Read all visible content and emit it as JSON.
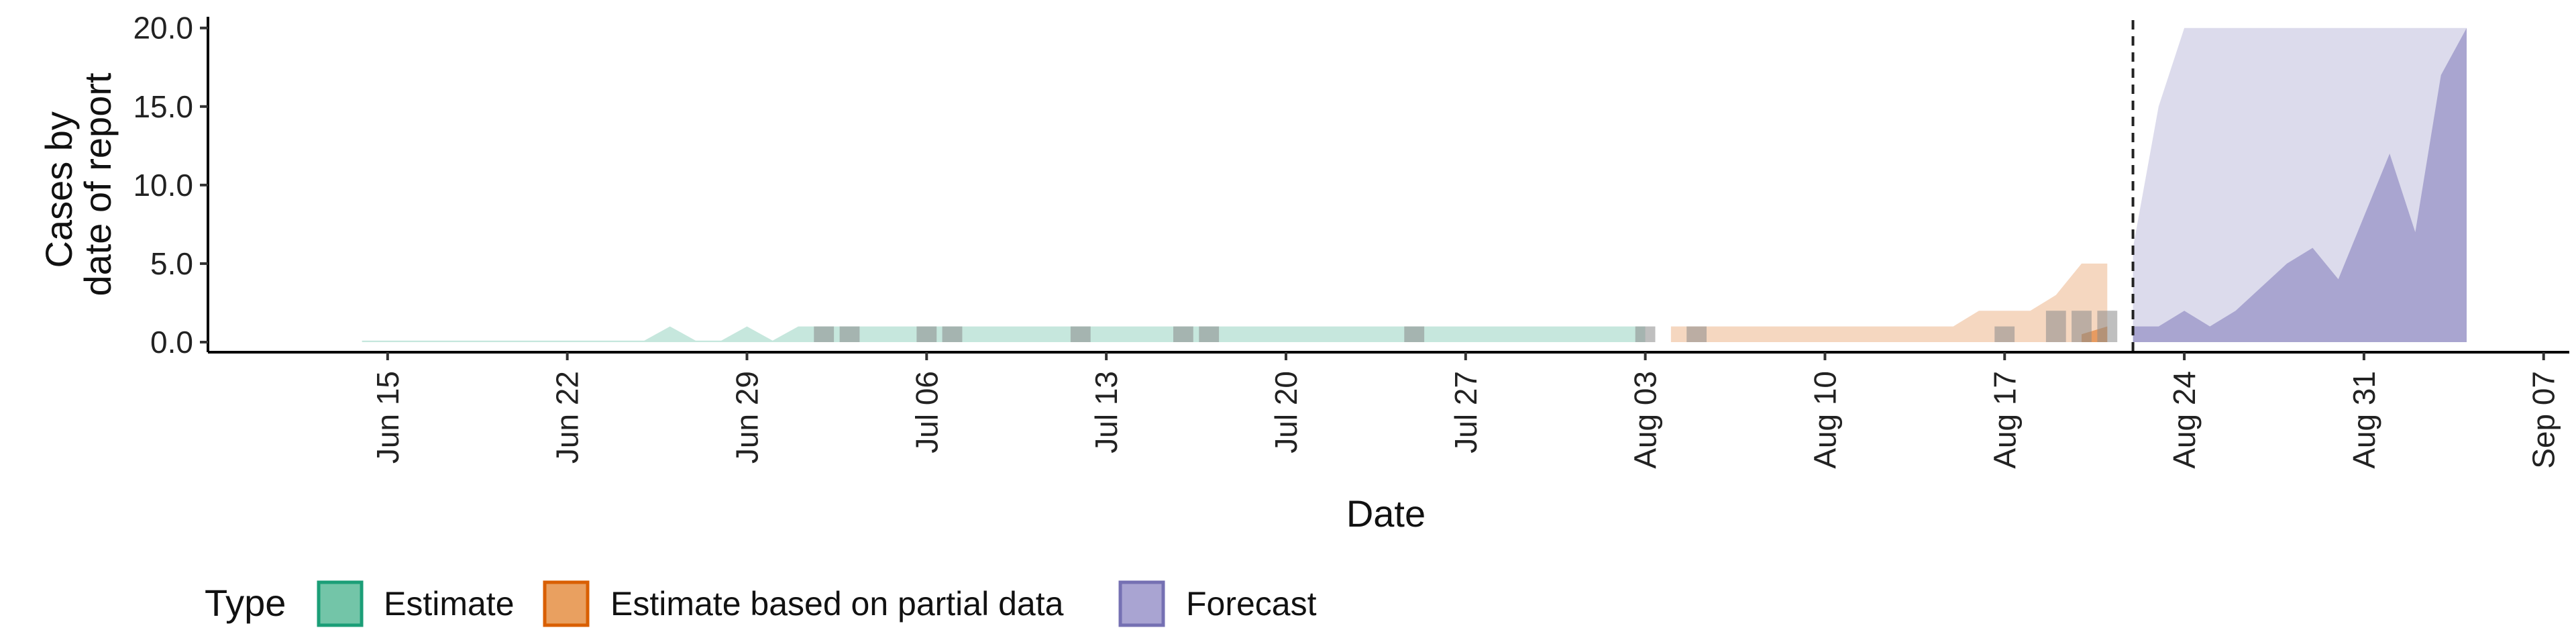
{
  "chart_data": {
    "type": "area",
    "title": "",
    "xlabel": "Date",
    "ylabel": [
      "Cases by",
      "date of report"
    ],
    "x_start": "2020-06-08",
    "xlim": [
      "2020-06-08",
      "2020-09-08"
    ],
    "ylim": [
      0,
      20.5
    ],
    "x_ticks": [
      {
        "date": "2020-06-15",
        "label": "Jun 15"
      },
      {
        "date": "2020-06-22",
        "label": "Jun 22"
      },
      {
        "date": "2020-06-29",
        "label": "Jun 29"
      },
      {
        "date": "2020-07-06",
        "label": "Jul 06"
      },
      {
        "date": "2020-07-13",
        "label": "Jul 13"
      },
      {
        "date": "2020-07-20",
        "label": "Jul 20"
      },
      {
        "date": "2020-07-27",
        "label": "Jul 27"
      },
      {
        "date": "2020-08-03",
        "label": "Aug 03"
      },
      {
        "date": "2020-08-10",
        "label": "Aug 10"
      },
      {
        "date": "2020-08-17",
        "label": "Aug 17"
      },
      {
        "date": "2020-08-24",
        "label": "Aug 24"
      },
      {
        "date": "2020-08-31",
        "label": "Aug 31"
      },
      {
        "date": "2020-09-07",
        "label": "Sep 07"
      }
    ],
    "y_ticks": [
      {
        "value": 0,
        "label": "0.0"
      },
      {
        "value": 5,
        "label": "5.0"
      },
      {
        "value": 10,
        "label": "10.0"
      },
      {
        "value": 15,
        "label": "15.0"
      },
      {
        "value": 20,
        "label": "20.0"
      }
    ],
    "forecast_date": "2020-08-22",
    "grid": false,
    "legend": {
      "title": "Type",
      "position": "bottom",
      "entries": [
        {
          "label": "Estimate",
          "fill": "#73c5a8",
          "stroke": "#1b9e77"
        },
        {
          "label": "Estimate based on partial data",
          "fill": "#e9a060",
          "stroke": "#d95f02"
        },
        {
          "label": "Forecast",
          "fill": "#a9a4d2",
          "stroke": "#7570b3"
        }
      ]
    },
    "series": [
      {
        "name": "Estimate",
        "color": "#1b9e77",
        "outer": [
          {
            "x": "2020-06-14",
            "lo": 0,
            "hi": 0.1
          },
          {
            "x": "2020-06-25",
            "lo": 0,
            "hi": 0.1
          },
          {
            "x": "2020-06-26",
            "lo": 0,
            "hi": 1
          },
          {
            "x": "2020-06-27",
            "lo": 0,
            "hi": 0.1
          },
          {
            "x": "2020-06-28",
            "lo": 0,
            "hi": 0.1
          },
          {
            "x": "2020-06-29",
            "lo": 0,
            "hi": 1
          },
          {
            "x": "2020-06-30",
            "lo": 0,
            "hi": 0.1
          },
          {
            "x": "2020-07-01",
            "lo": 0,
            "hi": 1
          },
          {
            "x": "2020-08-03",
            "lo": 0,
            "hi": 1
          }
        ],
        "inner": []
      },
      {
        "name": "Estimate based on partial data",
        "color": "#d95f02",
        "outer": [
          {
            "x": "2020-08-04",
            "lo": 0,
            "hi": 1
          },
          {
            "x": "2020-08-15",
            "lo": 0,
            "hi": 1
          },
          {
            "x": "2020-08-16",
            "lo": 0,
            "hi": 2
          },
          {
            "x": "2020-08-18",
            "lo": 0,
            "hi": 2
          },
          {
            "x": "2020-08-19",
            "lo": 0,
            "hi": 3
          },
          {
            "x": "2020-08-20",
            "lo": 0,
            "hi": 5
          },
          {
            "x": "2020-08-21",
            "lo": 0,
            "hi": 5
          }
        ],
        "inner": [
          {
            "x": "2020-08-20",
            "lo": 0,
            "hi": 0.5
          },
          {
            "x": "2020-08-21",
            "lo": 0,
            "hi": 1
          }
        ]
      },
      {
        "name": "Forecast",
        "color": "#7570b3",
        "outer": [
          {
            "x": "2020-08-22",
            "lo": 0,
            "hi": 6
          },
          {
            "x": "2020-08-23",
            "lo": 0,
            "hi": 15
          },
          {
            "x": "2020-08-24",
            "lo": 0,
            "hi": 20
          },
          {
            "x": "2020-09-04",
            "lo": 0,
            "hi": 20
          }
        ],
        "inner": [
          {
            "x": "2020-08-22",
            "lo": 0,
            "hi": 1
          },
          {
            "x": "2020-08-23",
            "lo": 0,
            "hi": 1
          },
          {
            "x": "2020-08-24",
            "lo": 0,
            "hi": 2
          },
          {
            "x": "2020-08-25",
            "lo": 0,
            "hi": 1
          },
          {
            "x": "2020-08-26",
            "lo": 0,
            "hi": 2
          },
          {
            "x": "2020-08-27",
            "lo": 0,
            "hi": 3.5
          },
          {
            "x": "2020-08-28",
            "lo": 0,
            "hi": 5
          },
          {
            "x": "2020-08-29",
            "lo": 0,
            "hi": 6
          },
          {
            "x": "2020-08-30",
            "lo": 0,
            "hi": 4
          },
          {
            "x": "2020-08-31",
            "lo": 0,
            "hi": 8
          },
          {
            "x": "2020-09-01",
            "lo": 0,
            "hi": 12
          },
          {
            "x": "2020-09-02",
            "lo": 0,
            "hi": 7
          },
          {
            "x": "2020-09-03",
            "lo": 0,
            "hi": 17
          },
          {
            "x": "2020-09-04",
            "lo": 0,
            "hi": 20
          }
        ]
      }
    ],
    "reported_cases": [
      {
        "x": "2020-07-02",
        "y": 1
      },
      {
        "x": "2020-07-03",
        "y": 1
      },
      {
        "x": "2020-07-06",
        "y": 1
      },
      {
        "x": "2020-07-07",
        "y": 1
      },
      {
        "x": "2020-07-12",
        "y": 1
      },
      {
        "x": "2020-07-16",
        "y": 1
      },
      {
        "x": "2020-07-17",
        "y": 1
      },
      {
        "x": "2020-07-25",
        "y": 1
      },
      {
        "x": "2020-08-03",
        "y": 1
      },
      {
        "x": "2020-08-05",
        "y": 1
      },
      {
        "x": "2020-08-17",
        "y": 1
      },
      {
        "x": "2020-08-19",
        "y": 2
      },
      {
        "x": "2020-08-20",
        "y": 2
      },
      {
        "x": "2020-08-21",
        "y": 2
      }
    ]
  }
}
